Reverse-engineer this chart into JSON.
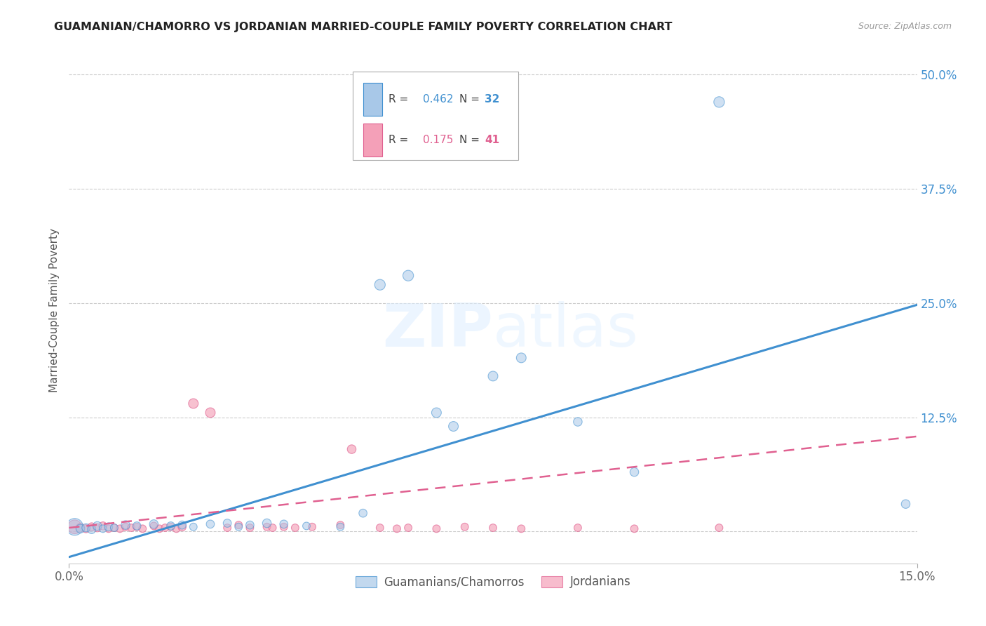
{
  "title": "GUAMANIAN/CHAMORRO VS JORDANIAN MARRIED-COUPLE FAMILY POVERTY CORRELATION CHART",
  "source": "Source: ZipAtlas.com",
  "ylabel": "Married-Couple Family Poverty",
  "color_blue": "#a8c8e8",
  "color_pink": "#f4a0b8",
  "color_blue_line": "#4090d0",
  "color_pink_line": "#e06090",
  "color_blue_text": "#4090d0",
  "color_pink_text": "#e06090",
  "background_color": "#ffffff",
  "grid_color": "#cccccc",
  "xmin": 0.0,
  "xmax": 0.15,
  "ymin": -0.035,
  "ymax": 0.52,
  "ytick_values": [
    0.0,
    0.125,
    0.25,
    0.375,
    0.5
  ],
  "ytick_labels": [
    "",
    "12.5%",
    "25.0%",
    "37.5%",
    "50.0%"
  ],
  "blue_line_x": [
    0.0,
    0.15
  ],
  "blue_line_y": [
    -0.028,
    0.248
  ],
  "pink_line_x": [
    0.0,
    0.15
  ],
  "pink_line_y": [
    0.004,
    0.104
  ],
  "guamanian_x": [
    0.001,
    0.002,
    0.003,
    0.004,
    0.005,
    0.006,
    0.007,
    0.008,
    0.01,
    0.012,
    0.015,
    0.018,
    0.02,
    0.022,
    0.025,
    0.028,
    0.03,
    0.032,
    0.035,
    0.038,
    0.042,
    0.048,
    0.052,
    0.055,
    0.06,
    0.065,
    0.068,
    0.075,
    0.08,
    0.09,
    0.1,
    0.115,
    0.148
  ],
  "guamanian_y": [
    0.005,
    0.003,
    0.004,
    0.002,
    0.006,
    0.003,
    0.005,
    0.004,
    0.007,
    0.006,
    0.008,
    0.006,
    0.007,
    0.005,
    0.008,
    0.009,
    0.005,
    0.007,
    0.009,
    0.008,
    0.006,
    0.005,
    0.02,
    0.27,
    0.28,
    0.13,
    0.115,
    0.17,
    0.19,
    0.12,
    0.065,
    0.47,
    0.03
  ],
  "guamanian_sizes": [
    300,
    80,
    70,
    70,
    80,
    60,
    70,
    60,
    80,
    70,
    80,
    70,
    70,
    60,
    70,
    70,
    60,
    70,
    80,
    70,
    60,
    60,
    70,
    120,
    120,
    100,
    100,
    100,
    100,
    80,
    80,
    120,
    80
  ],
  "jordanian_x": [
    0.001,
    0.002,
    0.003,
    0.004,
    0.005,
    0.006,
    0.007,
    0.008,
    0.009,
    0.01,
    0.011,
    0.012,
    0.013,
    0.015,
    0.016,
    0.017,
    0.018,
    0.019,
    0.02,
    0.022,
    0.025,
    0.028,
    0.03,
    0.032,
    0.035,
    0.036,
    0.038,
    0.04,
    0.043,
    0.048,
    0.05,
    0.055,
    0.058,
    0.06,
    0.065,
    0.07,
    0.075,
    0.08,
    0.09,
    0.1,
    0.115
  ],
  "jordanian_y": [
    0.005,
    0.004,
    0.003,
    0.005,
    0.004,
    0.006,
    0.003,
    0.004,
    0.003,
    0.005,
    0.004,
    0.005,
    0.003,
    0.006,
    0.003,
    0.004,
    0.005,
    0.003,
    0.005,
    0.14,
    0.13,
    0.004,
    0.007,
    0.004,
    0.005,
    0.004,
    0.005,
    0.004,
    0.005,
    0.007,
    0.09,
    0.004,
    0.003,
    0.004,
    0.003,
    0.005,
    0.004,
    0.003,
    0.004,
    0.003,
    0.004
  ],
  "jordanian_sizes": [
    200,
    80,
    70,
    70,
    70,
    70,
    60,
    60,
    60,
    60,
    60,
    60,
    60,
    60,
    60,
    60,
    60,
    60,
    70,
    100,
    100,
    60,
    60,
    60,
    60,
    60,
    60,
    60,
    60,
    60,
    80,
    60,
    60,
    60,
    60,
    60,
    60,
    60,
    60,
    60,
    60
  ]
}
